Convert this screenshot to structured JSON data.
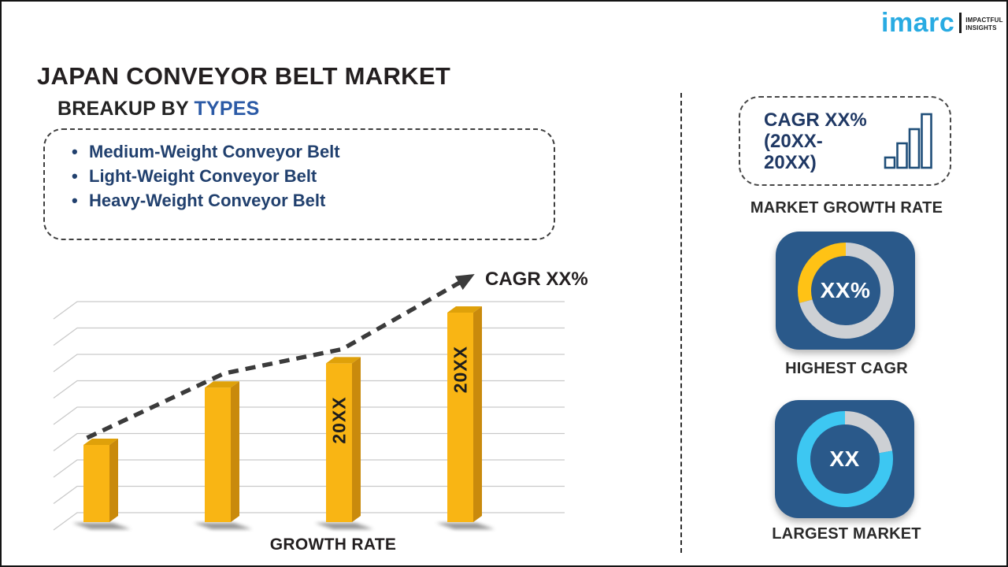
{
  "header": {
    "title": "JAPAN CONVEYOR BELT MARKET"
  },
  "logo": {
    "wordmark": "imarc",
    "tagline_line1": "IMPACTFUL",
    "tagline_line2": "INSIGHTS",
    "brand_color": "#29ABE2"
  },
  "breakup": {
    "heading_prefix": "BREAKUP BY ",
    "heading_highlight": "TYPES",
    "items": [
      "Medium-Weight Conveyor Belt",
      "Light-Weight Conveyor Belt",
      "Heavy-Weight Conveyor Belt"
    ]
  },
  "chart_data": {
    "type": "bar",
    "title": "",
    "xlabel": "GROWTH RATE",
    "ylabel": "",
    "ylim": [
      0,
      100
    ],
    "grid": true,
    "categories": [
      "",
      "",
      "20XX",
      "20XX"
    ],
    "values": [
      35,
      61,
      72,
      95
    ],
    "trend": {
      "label": "CAGR XX%",
      "style": "dashed-arrow"
    },
    "colors": {
      "bar_front": "#F9B514",
      "bar_top": "#DFA10A",
      "bar_side": "#C98A0C",
      "gridline": "#C9C9C9",
      "trend": "#3B3B3B",
      "bar_label": "#1D1D1D",
      "shadow": "#3F3F3F"
    }
  },
  "right_panel": {
    "market_growth_rate": {
      "line1": "CAGR XX%",
      "line2": "(20XX-20XX)",
      "caption": "MARKET GROWTH RATE",
      "icon_color": "#1F4E79"
    },
    "highest_cagr": {
      "value": "XX%",
      "caption": "HIGHEST CAGR",
      "tile_color": "#2A598A",
      "segments": [
        {
          "color": "#CDD0D4",
          "from": 0,
          "to": 255
        },
        {
          "color": "#FFC215",
          "from": 255,
          "to": 360
        }
      ]
    },
    "largest_market": {
      "value": "XX",
      "caption": "LARGEST MARKET",
      "tile_color": "#2A598A",
      "segments": [
        {
          "color": "#CDD0D4",
          "from": 0,
          "to": 80
        },
        {
          "color": "#3DC7F2",
          "from": 80,
          "to": 360
        }
      ]
    }
  }
}
